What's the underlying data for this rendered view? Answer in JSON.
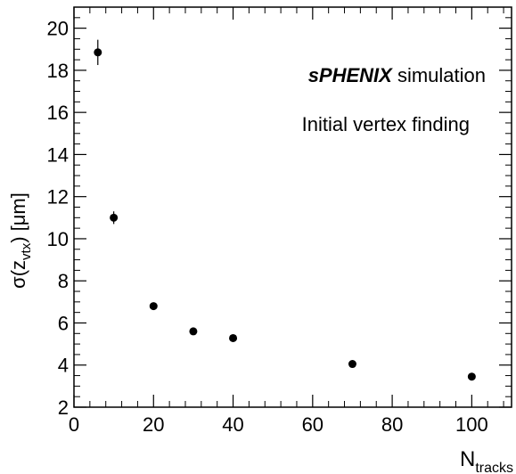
{
  "chart_data": {
    "type": "scatter",
    "xlim": [
      0,
      110
    ],
    "ylim": [
      2,
      21
    ],
    "x_ticks": [
      0,
      20,
      40,
      60,
      80,
      100
    ],
    "y_ticks": [
      2,
      4,
      6,
      8,
      10,
      12,
      14,
      16,
      18,
      20
    ],
    "xlabel": {
      "base": "N",
      "sub": "tracks"
    },
    "ylabel": {
      "prefix": "σ(z",
      "sub": "vtx",
      "suffix": ") [μm]"
    },
    "annotations": [
      {
        "bold": "sPHENIX",
        "text": " simulation"
      },
      {
        "bold": "",
        "text": "Initial vertex finding"
      }
    ],
    "series": [
      {
        "points": [
          {
            "x": 6,
            "y": 18.85,
            "yerr": 0.6
          },
          {
            "x": 10,
            "y": 11.0,
            "yerr": 0.3
          },
          {
            "x": 20,
            "y": 6.8,
            "yerr": 0.1
          },
          {
            "x": 30,
            "y": 5.6,
            "yerr": 0.1
          },
          {
            "x": 40,
            "y": 5.28,
            "yerr": 0.1
          },
          {
            "x": 70,
            "y": 4.05,
            "yerr": 0.05
          },
          {
            "x": 100,
            "y": 3.45,
            "yerr": 0.05
          }
        ]
      }
    ],
    "grid": false,
    "marker_color": "#000000"
  }
}
